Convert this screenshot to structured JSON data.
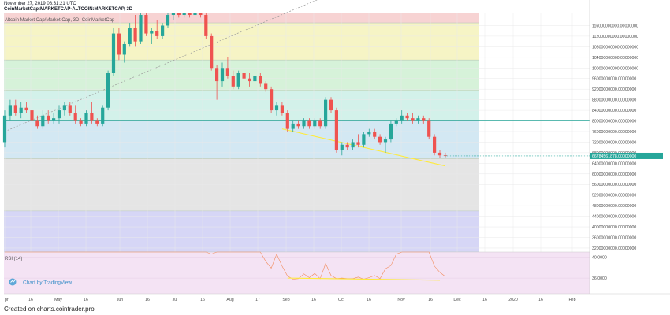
{
  "header": {
    "date": "November 27, 2019 08:31:21 UTC",
    "symbol": "CoinMarketCap:MARKETCAP-ALTCOIN:MARKETCAP, 3D"
  },
  "legend": "Altcoin Market Cap/Market Cap, 3D, CoinMarketCap",
  "watermark": "Chart by TradingView",
  "footer": "Created on charts.cointrader.pro",
  "colors": {
    "up": "#26a69a",
    "down": "#ef5350",
    "band_red": "#f7d3d3",
    "band_yellow": "#f6f4c5",
    "band_green": "#d6f2d9",
    "band_teal": "#d3f1ea",
    "band_blue": "#d3e8f3",
    "band_gray": "#e5e5e5",
    "band_purple": "#d6d6f6",
    "rsi_bg": "#f4e3f4",
    "trend_yellow": "#ffeb3b",
    "price_label": "#26a69a"
  },
  "chart_data": [
    {
      "type": "candlestick",
      "y_axis_ticks": [
        "116000000000.00000000",
        "112000000000.00000000",
        "108000000000.00000000",
        "104000000000.00000000",
        "100000000000.00000000",
        "96000000000.00000000",
        "92000000000.00000000",
        "88000000000.00000000",
        "84000000000.00000000",
        "80000000000.00000000",
        "76000000000.00000000",
        "72000000000.00000000",
        "68000000000.00000000",
        "64000000000.00000000",
        "60000000000.00000000",
        "56000000000.00000000",
        "52000000000.00000000",
        "48000000000.00000000",
        "44000000000.00000000",
        "40000000000.00000000",
        "36000000000.00000000",
        "32000000000.00000000"
      ],
      "ylim": [
        30500000000,
        120600000000
      ],
      "last_price_label": "66784561878.00000000",
      "last_price": 66784561878,
      "x_axis_ticks": [
        "pr",
        "16",
        "May",
        "16",
        "Jun",
        "16",
        "Jul",
        "16",
        "Aug",
        "17",
        "Sep",
        "16",
        "Oct",
        "16",
        "Nov",
        "16",
        "Dec",
        "16",
        "2020",
        "16",
        "Feb"
      ],
      "zones": [
        {
          "from": 117000000000,
          "to": 120600000000,
          "color": "band_red"
        },
        {
          "from": 103000000000,
          "to": 117000000000,
          "color": "band_yellow"
        },
        {
          "from": 91500000000,
          "to": 103000000000,
          "color": "band_green"
        },
        {
          "from": 80000000000,
          "to": 91500000000,
          "color": "band_teal"
        },
        {
          "from": 65800000000,
          "to": 80000000000,
          "color": "band_blue"
        },
        {
          "from": 46000000000,
          "to": 65800000000,
          "color": "band_gray"
        },
        {
          "from": 30500000000,
          "to": 46000000000,
          "color": "band_purple"
        }
      ],
      "candles": [
        {
          "o": 72,
          "h": 84,
          "l": 70,
          "c": 82
        },
        {
          "o": 82,
          "h": 88,
          "l": 80,
          "c": 86
        },
        {
          "o": 86,
          "h": 88,
          "l": 82,
          "c": 83
        },
        {
          "o": 83,
          "h": 87,
          "l": 81,
          "c": 85
        },
        {
          "o": 85,
          "h": 87,
          "l": 83,
          "c": 84
        },
        {
          "o": 84,
          "h": 86,
          "l": 78,
          "c": 80
        },
        {
          "o": 80,
          "h": 82,
          "l": 77,
          "c": 78
        },
        {
          "o": 78,
          "h": 84,
          "l": 77,
          "c": 82
        },
        {
          "o": 82,
          "h": 84,
          "l": 79,
          "c": 80
        },
        {
          "o": 80,
          "h": 83,
          "l": 79,
          "c": 81
        },
        {
          "o": 81,
          "h": 86,
          "l": 79,
          "c": 84
        },
        {
          "o": 84,
          "h": 87,
          "l": 82,
          "c": 86
        },
        {
          "o": 86,
          "h": 87,
          "l": 82,
          "c": 83
        },
        {
          "o": 83,
          "h": 86,
          "l": 79,
          "c": 80
        },
        {
          "o": 80,
          "h": 81,
          "l": 78,
          "c": 79
        },
        {
          "o": 79,
          "h": 84,
          "l": 78,
          "c": 83
        },
        {
          "o": 83,
          "h": 87,
          "l": 79,
          "c": 80
        },
        {
          "o": 80,
          "h": 81,
          "l": 78,
          "c": 79
        },
        {
          "o": 79,
          "h": 86,
          "l": 78,
          "c": 85
        },
        {
          "o": 85,
          "h": 99,
          "l": 84,
          "c": 98
        },
        {
          "o": 98,
          "h": 115,
          "l": 97,
          "c": 113
        },
        {
          "o": 113,
          "h": 115,
          "l": 103,
          "c": 105
        },
        {
          "o": 105,
          "h": 110,
          "l": 102,
          "c": 109
        },
        {
          "o": 109,
          "h": 117,
          "l": 108,
          "c": 115
        },
        {
          "o": 115,
          "h": 120,
          "l": 108,
          "c": 110
        },
        {
          "o": 110,
          "h": 121,
          "l": 109,
          "c": 120
        },
        {
          "o": 120,
          "h": 122,
          "l": 112,
          "c": 113
        },
        {
          "o": 113,
          "h": 115,
          "l": 109,
          "c": 114
        },
        {
          "o": 114,
          "h": 118,
          "l": 111,
          "c": 112
        },
        {
          "o": 112,
          "h": 117,
          "l": 111,
          "c": 116
        },
        {
          "o": 116,
          "h": 121,
          "l": 115,
          "c": 120
        },
        {
          "o": 120,
          "h": 122,
          "l": 118,
          "c": 121
        },
        {
          "o": 121,
          "h": 122,
          "l": 119,
          "c": 120
        },
        {
          "o": 120,
          "h": 122,
          "l": 119,
          "c": 121
        },
        {
          "o": 121,
          "h": 122,
          "l": 119,
          "c": 120
        },
        {
          "o": 120,
          "h": 122,
          "l": 118,
          "c": 121
        },
        {
          "o": 121,
          "h": 122,
          "l": 119,
          "c": 120
        },
        {
          "o": 120,
          "h": 121,
          "l": 111,
          "c": 112
        },
        {
          "o": 112,
          "h": 113,
          "l": 99,
          "c": 100
        },
        {
          "o": 100,
          "h": 101,
          "l": 88,
          "c": 95
        },
        {
          "o": 95,
          "h": 102,
          "l": 93,
          "c": 100
        },
        {
          "o": 100,
          "h": 104,
          "l": 96,
          "c": 97
        },
        {
          "o": 97,
          "h": 99,
          "l": 92,
          "c": 93
        },
        {
          "o": 93,
          "h": 99,
          "l": 92,
          "c": 98
        },
        {
          "o": 98,
          "h": 99,
          "l": 94,
          "c": 96
        },
        {
          "o": 96,
          "h": 98,
          "l": 93,
          "c": 95
        },
        {
          "o": 95,
          "h": 98,
          "l": 94,
          "c": 97
        },
        {
          "o": 97,
          "h": 98,
          "l": 93,
          "c": 94
        },
        {
          "o": 94,
          "h": 95,
          "l": 91,
          "c": 92
        },
        {
          "o": 92,
          "h": 93,
          "l": 83,
          "c": 84
        },
        {
          "o": 84,
          "h": 87,
          "l": 82,
          "c": 86
        },
        {
          "o": 86,
          "h": 87,
          "l": 82,
          "c": 83
        },
        {
          "o": 83,
          "h": 84,
          "l": 76,
          "c": 77
        },
        {
          "o": 77,
          "h": 80,
          "l": 76,
          "c": 79
        },
        {
          "o": 79,
          "h": 80,
          "l": 77,
          "c": 78
        },
        {
          "o": 78,
          "h": 81,
          "l": 77,
          "c": 80
        },
        {
          "o": 80,
          "h": 81,
          "l": 77,
          "c": 78
        },
        {
          "o": 78,
          "h": 81,
          "l": 77,
          "c": 80
        },
        {
          "o": 80,
          "h": 81,
          "l": 77,
          "c": 78
        },
        {
          "o": 78,
          "h": 89,
          "l": 77,
          "c": 88
        },
        {
          "o": 88,
          "h": 89,
          "l": 83,
          "c": 84
        },
        {
          "o": 84,
          "h": 85,
          "l": 68,
          "c": 69
        },
        {
          "o": 69,
          "h": 72,
          "l": 67,
          "c": 71
        },
        {
          "o": 71,
          "h": 72,
          "l": 69,
          "c": 70
        },
        {
          "o": 70,
          "h": 73,
          "l": 69,
          "c": 72
        },
        {
          "o": 72,
          "h": 75,
          "l": 70,
          "c": 71
        },
        {
          "o": 71,
          "h": 76,
          "l": 70,
          "c": 75
        },
        {
          "o": 75,
          "h": 77,
          "l": 74,
          "c": 76
        },
        {
          "o": 76,
          "h": 77,
          "l": 73,
          "c": 74
        },
        {
          "o": 74,
          "h": 75,
          "l": 71,
          "c": 72
        },
        {
          "o": 72,
          "h": 74,
          "l": 68,
          "c": 73
        },
        {
          "o": 73,
          "h": 80,
          "l": 72,
          "c": 79
        },
        {
          "o": 79,
          "h": 81,
          "l": 78,
          "c": 80
        },
        {
          "o": 80,
          "h": 84,
          "l": 79,
          "c": 82
        },
        {
          "o": 82,
          "h": 83,
          "l": 80,
          "c": 81
        },
        {
          "o": 81,
          "h": 83,
          "l": 79,
          "c": 80
        },
        {
          "o": 80,
          "h": 82,
          "l": 79,
          "c": 81
        },
        {
          "o": 81,
          "h": 82,
          "l": 79,
          "c": 80
        },
        {
          "o": 80,
          "h": 81,
          "l": 73,
          "c": 74
        },
        {
          "o": 74,
          "h": 75,
          "l": 67,
          "c": 68
        },
        {
          "o": 68,
          "h": 69,
          "l": 66,
          "c": 67
        },
        {
          "o": 67,
          "h": 68,
          "l": 66,
          "c": 66.8
        }
      ],
      "trendlines": [
        {
          "from_index": 0,
          "from_value": 76,
          "to_index": 52,
          "to_value": 121,
          "style": "dashed"
        },
        {
          "from_index": 51,
          "from_value": 77,
          "to_index": 81,
          "to_value": 63,
          "style": "solid"
        }
      ],
      "hlines": [
        80,
        66
      ]
    },
    {
      "type": "line",
      "title": "RSI (14)",
      "y_axis_ticks": [
        "40.0000",
        "36.0000"
      ],
      "ylim": [
        33,
        41
      ],
      "values": [
        41,
        41,
        41,
        41,
        41,
        41,
        41,
        41,
        41,
        41,
        41,
        41,
        41,
        41,
        41,
        41,
        41,
        41,
        41,
        41,
        41,
        41,
        41,
        41,
        41,
        41,
        41,
        41,
        41,
        41,
        41,
        41,
        41,
        41,
        41,
        41,
        41,
        41,
        40.6,
        41,
        41,
        41,
        41,
        41,
        41,
        41,
        41,
        41,
        39.2,
        37.9,
        40.6,
        38.3,
        36.4,
        35.8,
        35.9,
        36.8,
        36.1,
        36.9,
        35.9,
        38.8,
        36.5,
        35.9,
        36.0,
        35.9,
        35.9,
        36.2,
        35.8,
        36.1,
        36.5,
        35.9,
        37.8,
        38.4,
        40.6,
        41,
        41,
        41,
        41,
        41,
        41,
        38.3,
        37.1,
        36.3
      ],
      "trendline": {
        "from_index": 52,
        "from_value": 36.0,
        "to_index": 80,
        "to_value": 35.6
      }
    }
  ]
}
